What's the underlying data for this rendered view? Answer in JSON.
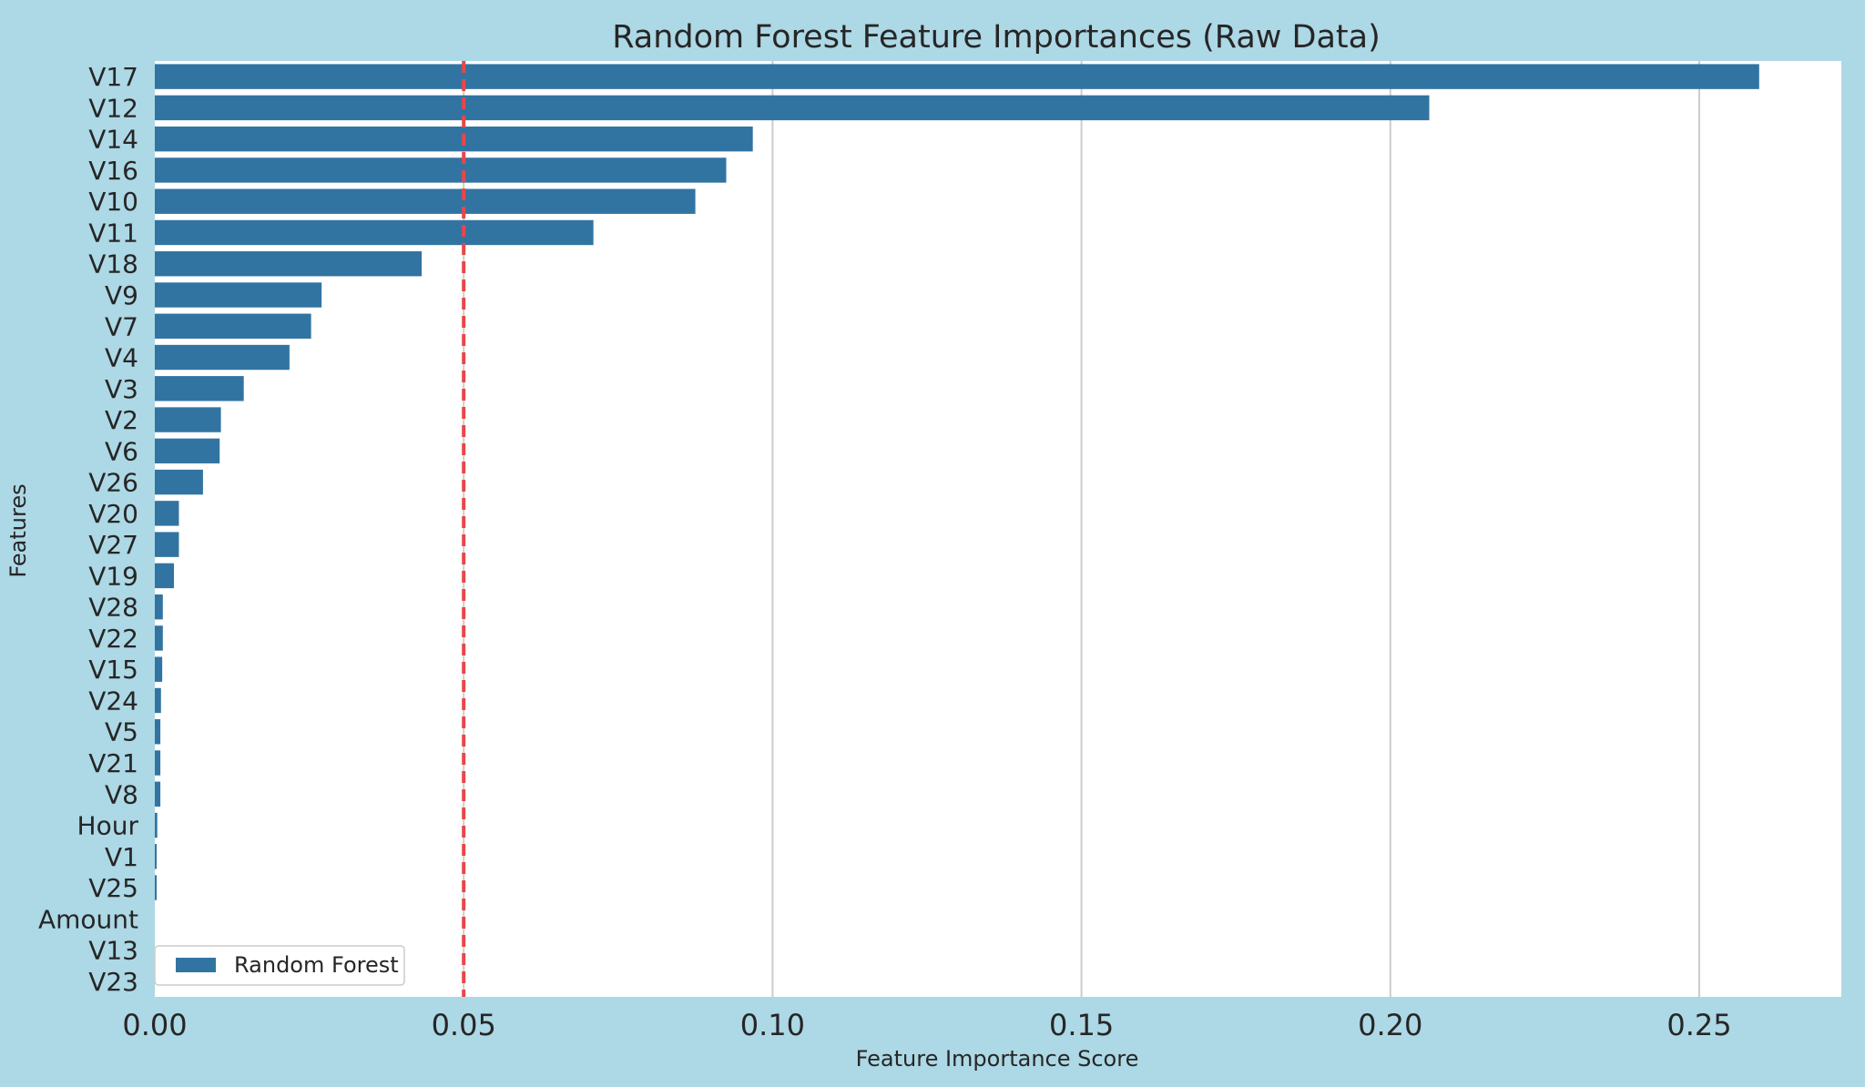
{
  "colors": {
    "background": "#add8e6",
    "plot_area": "#ffffff",
    "bar": "#3274a1",
    "threshold": "#e8474a",
    "grid": "#cccccc",
    "text": "#262626"
  },
  "chart_data": {
    "type": "bar",
    "orientation": "horizontal",
    "title": "Random Forest Feature Importances (Raw Data)",
    "xlabel": "Feature Importance Score",
    "ylabel": "Features",
    "xlim": [
      0,
      0.273
    ],
    "xticks": [
      "0.00",
      "0.05",
      "0.10",
      "0.15",
      "0.20",
      "0.25"
    ],
    "grid": "vertical",
    "legend": {
      "position": "lower-left",
      "entries": [
        "Random Forest"
      ]
    },
    "threshold_line": {
      "x": 0.05,
      "style": "dashed"
    },
    "categories": [
      "V17",
      "V12",
      "V14",
      "V16",
      "V10",
      "V11",
      "V18",
      "V9",
      "V7",
      "V4",
      "V3",
      "V2",
      "V6",
      "V26",
      "V20",
      "V27",
      "V19",
      "V28",
      "V22",
      "V15",
      "V24",
      "V5",
      "V21",
      "V8",
      "Hour",
      "V1",
      "V25",
      "Amount",
      "V13",
      "V23"
    ],
    "series": [
      {
        "name": "Random Forest",
        "values": [
          0.2597,
          0.2063,
          0.0968,
          0.0925,
          0.0875,
          0.071,
          0.0432,
          0.027,
          0.0253,
          0.0218,
          0.0144,
          0.0107,
          0.0105,
          0.0078,
          0.0039,
          0.0039,
          0.0031,
          0.0013,
          0.0013,
          0.0012,
          0.001,
          0.0009,
          0.0009,
          0.0009,
          0.0004,
          0.0003,
          0.0003,
          0.0,
          0.0,
          0.0
        ]
      }
    ]
  }
}
